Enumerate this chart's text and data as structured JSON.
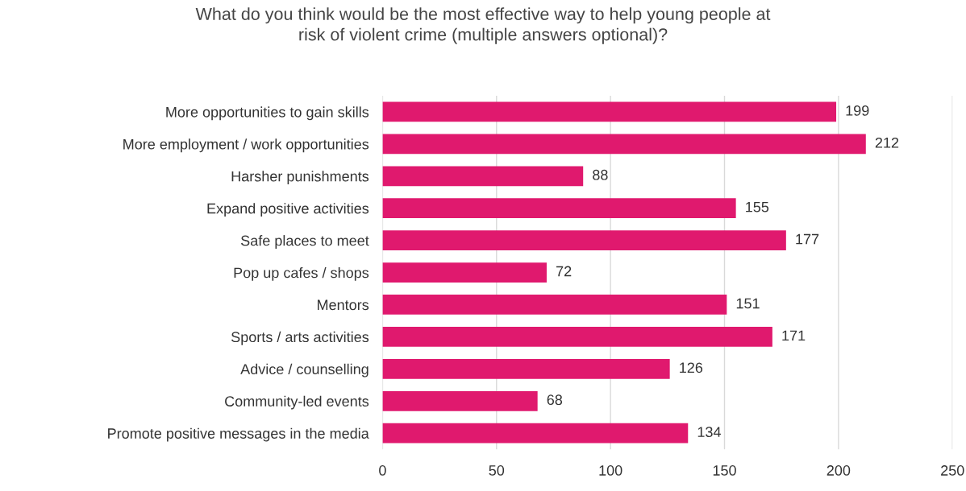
{
  "chart_data": {
    "type": "bar",
    "orientation": "horizontal",
    "title": "What do you think would be the most effective way to help young people at\nrisk of violent crime (multiple answers optional)?",
    "categories": [
      "More opportunities to gain skills",
      "More employment / work opportunities",
      "Harsher punishments",
      "Expand positive activities",
      "Safe places to meet",
      "Pop up cafes / shops",
      "Mentors",
      "Sports / arts activities",
      "Advice / counselling",
      "Community-led events",
      "Promote positive messages in the media"
    ],
    "values": [
      199,
      212,
      88,
      155,
      177,
      72,
      151,
      171,
      126,
      68,
      134
    ],
    "color": "#e0196e",
    "xlim": [
      0,
      250
    ],
    "xticks": [
      0,
      50,
      100,
      150,
      200,
      250
    ],
    "grid": "x",
    "data_labels": true
  }
}
